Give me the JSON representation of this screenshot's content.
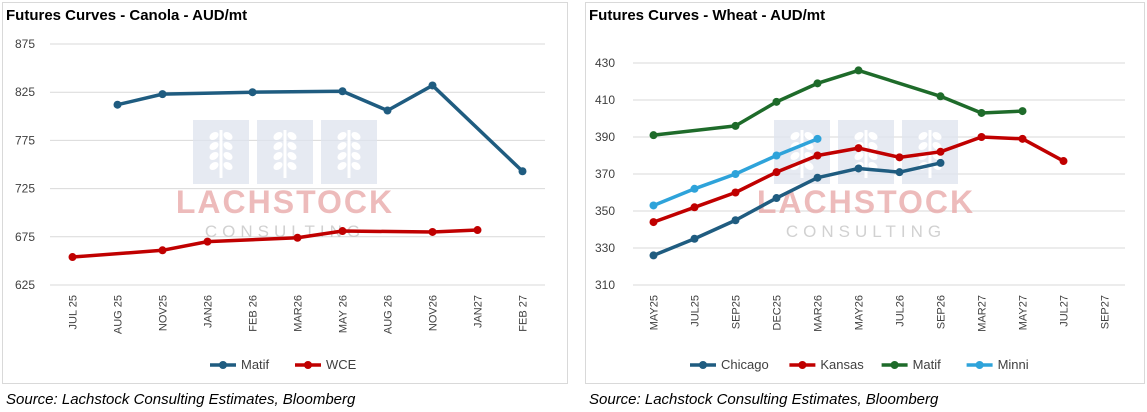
{
  "colors": {
    "matif_canola": "#1f5c80",
    "wce": "#c00000",
    "chicago": "#1f5c80",
    "kansas": "#c00000",
    "matif_wheat": "#1e6b2a",
    "minni": "#2ea3da",
    "watermark_red": "#e8a5a5",
    "watermark_gray": "#c9c9c9",
    "watermark_blue": "#dde3ee"
  },
  "watermark": {
    "brand": "LACHSTOCK",
    "sub": "CONSULTING"
  },
  "charts": {
    "canola": {
      "title": "Futures Curves - Canola - AUD/mt",
      "source": "Source: Lachstock Consulting Estimates, Bloomberg"
    },
    "wheat": {
      "title": "Futures Curves - Wheat - AUD/mt",
      "source": "Source: Lachstock Consulting Estimates, Bloomberg"
    }
  },
  "chart_data": [
    {
      "type": "line",
      "title": "Futures Curves - Canola - AUD/mt",
      "categories": [
        "JUL 25",
        "AUG 25",
        "NOV25",
        "JAN26",
        "FEB 26",
        "MAR26",
        "MAY 26",
        "AUG 26",
        "NOV26",
        "JAN27",
        "FEB 27"
      ],
      "ylim": [
        625,
        875
      ],
      "yticks": [
        625,
        675,
        725,
        775,
        825,
        875
      ],
      "grid": true,
      "legend": "bottom",
      "series": [
        {
          "name": "Matif",
          "color": "#1f5c80",
          "values": [
            null,
            812,
            823,
            null,
            825,
            null,
            826,
            806,
            832,
            null,
            743
          ]
        },
        {
          "name": "WCE",
          "color": "#c00000",
          "values": [
            654,
            null,
            661,
            670,
            null,
            674,
            681,
            null,
            680,
            682,
            null
          ]
        }
      ]
    },
    {
      "type": "line",
      "title": "Futures Curves - Wheat - AUD/mt",
      "categories": [
        "MAY25",
        "JUL25",
        "SEP25",
        "DEC25",
        "MAR26",
        "MAY26",
        "JUL26",
        "SEP26",
        "MAR27",
        "MAY27",
        "JUL27",
        "SEP27"
      ],
      "ylim": [
        310,
        430
      ],
      "yticks": [
        310,
        330,
        350,
        370,
        390,
        410,
        430
      ],
      "grid": true,
      "legend": "bottom",
      "series": [
        {
          "name": "Chicago",
          "color": "#1f5c80",
          "values": [
            326,
            335,
            345,
            357,
            368,
            373,
            371,
            376,
            null,
            null,
            null,
            null
          ]
        },
        {
          "name": "Kansas",
          "color": "#c00000",
          "values": [
            344,
            352,
            360,
            371,
            380,
            384,
            379,
            382,
            390,
            389,
            377,
            null
          ]
        },
        {
          "name": "Matif",
          "color": "#1e6b2a",
          "values": [
            391,
            null,
            396,
            409,
            419,
            426,
            null,
            412,
            403,
            404,
            null,
            null
          ]
        },
        {
          "name": "Minni",
          "color": "#2ea3da",
          "values": [
            353,
            362,
            370,
            380,
            389,
            null,
            null,
            null,
            null,
            null,
            null,
            null
          ]
        }
      ]
    }
  ]
}
